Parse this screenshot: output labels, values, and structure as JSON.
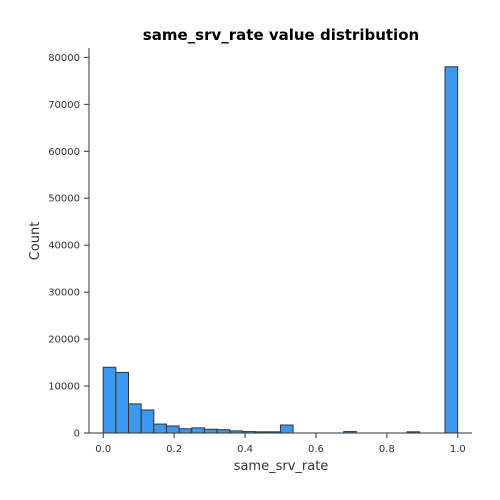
{
  "chart_data": {
    "type": "bar",
    "title": "same_srv_rate value distribution",
    "xlabel": "same_srv_rate",
    "ylabel": "Count",
    "xlim": [
      -0.04,
      1.04
    ],
    "ylim": [
      0,
      82000
    ],
    "xticks": [
      0.0,
      0.2,
      0.4,
      0.6,
      0.8,
      1.0
    ],
    "xtick_labels": [
      "0.0",
      "0.2",
      "0.4",
      "0.6",
      "0.8",
      "1.0"
    ],
    "yticks": [
      0,
      10000,
      20000,
      30000,
      40000,
      50000,
      60000,
      70000,
      80000
    ],
    "ytick_labels": [
      "0",
      "10000",
      "20000",
      "30000",
      "40000",
      "50000",
      "60000",
      "70000",
      "80000"
    ],
    "bin_start": 0.0,
    "bin_width": 0.0357,
    "values": [
      14000,
      12900,
      6200,
      4900,
      1900,
      1500,
      900,
      1100,
      800,
      700,
      450,
      300,
      250,
      250,
      1700,
      0,
      0,
      0,
      0,
      300,
      0,
      0,
      0,
      0,
      250,
      0,
      0,
      78000
    ],
    "bar_color": "#3d98ee",
    "edge_color": "#333333",
    "grid": false
  }
}
